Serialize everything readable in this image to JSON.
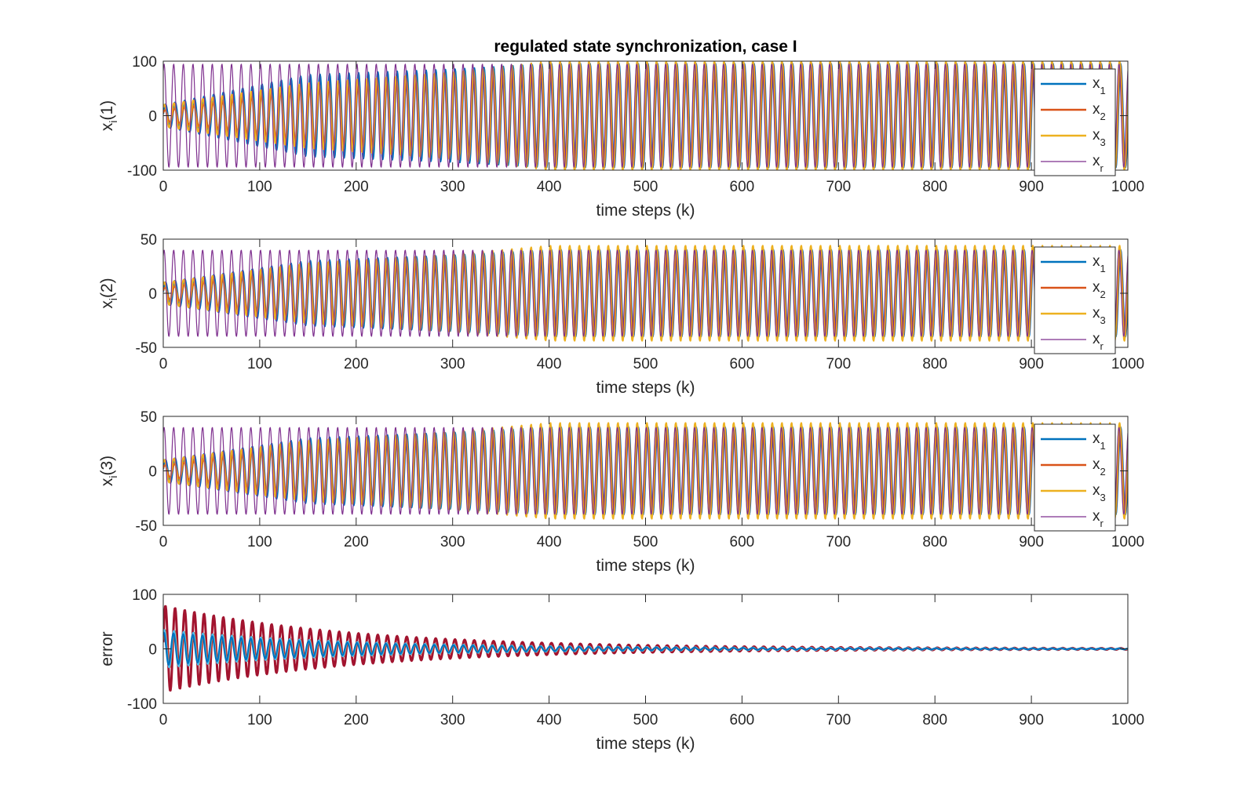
{
  "chart_data": [
    {
      "type": "line",
      "title": "regulated state synchronization, case I",
      "xlabel": "time steps (k)",
      "ylabel": "x_i(1)",
      "xlim": [
        0,
        1000
      ],
      "ylim": [
        -100,
        100
      ],
      "xticks": [
        "0",
        "100",
        "200",
        "300",
        "400",
        "500",
        "600",
        "700",
        "800",
        "900",
        "1000"
      ],
      "yticks": [
        "-100",
        "0",
        "100"
      ],
      "legend": [
        "x_1",
        "x_2",
        "x_3",
        "x_r"
      ],
      "legend_position": "right",
      "series": [
        {
          "name": "x_1",
          "color": "#0072BD",
          "amplitude_start": 20,
          "amplitude_peak": 75,
          "amplitude_end": 95,
          "period": 10
        },
        {
          "name": "x_2",
          "color": "#D95319",
          "amplitude_start": 10,
          "amplitude_peak": 50,
          "amplitude_end": 95,
          "period": 10
        },
        {
          "name": "x_3",
          "color": "#EDB120",
          "amplitude_start": 20,
          "amplitude_peak": 60,
          "amplitude_end": 100,
          "period": 10
        },
        {
          "name": "x_r",
          "color": "#7E2F8E",
          "amplitude": 95,
          "period": 10
        }
      ]
    },
    {
      "type": "line",
      "title": "",
      "xlabel": "time steps (k)",
      "ylabel": "x_i(2)",
      "xlim": [
        0,
        1000
      ],
      "ylim": [
        -50,
        50
      ],
      "xticks": [
        "0",
        "100",
        "200",
        "300",
        "400",
        "500",
        "600",
        "700",
        "800",
        "900",
        "1000"
      ],
      "yticks": [
        "-50",
        "0",
        "50"
      ],
      "legend": [
        "x_1",
        "x_2",
        "x_3",
        "x_r"
      ],
      "legend_position": "right",
      "series": [
        {
          "name": "x_1",
          "color": "#0072BD",
          "amplitude_start": 10,
          "amplitude_peak": 30,
          "amplitude_end": 40,
          "period": 10
        },
        {
          "name": "x_2",
          "color": "#D95319",
          "amplitude_start": 5,
          "amplitude_peak": 25,
          "amplitude_end": 40,
          "period": 10
        },
        {
          "name": "x_3",
          "color": "#EDB120",
          "amplitude_start": 10,
          "amplitude_peak": 28,
          "amplitude_end": 44,
          "period": 10
        },
        {
          "name": "x_r",
          "color": "#7E2F8E",
          "amplitude": 40,
          "period": 10
        }
      ]
    },
    {
      "type": "line",
      "title": "",
      "xlabel": "time steps (k)",
      "ylabel": "x_i(3)",
      "xlim": [
        0,
        1000
      ],
      "ylim": [
        -50,
        50
      ],
      "xticks": [
        "0",
        "100",
        "200",
        "300",
        "400",
        "500",
        "600",
        "700",
        "800",
        "900",
        "1000"
      ],
      "yticks": [
        "-50",
        "0",
        "50"
      ],
      "legend": [
        "x_1",
        "x_2",
        "x_3",
        "x_r"
      ],
      "legend_position": "right",
      "series": [
        {
          "name": "x_1",
          "color": "#0072BD",
          "amplitude_start": 10,
          "amplitude_peak": 30,
          "amplitude_end": 40,
          "period": 10
        },
        {
          "name": "x_2",
          "color": "#D95319",
          "amplitude_start": 5,
          "amplitude_peak": 25,
          "amplitude_end": 40,
          "period": 10
        },
        {
          "name": "x_3",
          "color": "#EDB120",
          "amplitude_start": 10,
          "amplitude_peak": 28,
          "amplitude_end": 44,
          "period": 10
        },
        {
          "name": "x_r",
          "color": "#7E2F8E",
          "amplitude": 40,
          "period": 10
        }
      ]
    },
    {
      "type": "line",
      "title": "",
      "xlabel": "time steps (k)",
      "ylabel": "error",
      "xlim": [
        0,
        1000
      ],
      "ylim": [
        -100,
        100
      ],
      "xticks": [
        "0",
        "100",
        "200",
        "300",
        "400",
        "500",
        "600",
        "700",
        "800",
        "900",
        "1000"
      ],
      "yticks": [
        "-100",
        "0",
        "100"
      ],
      "series": [
        {
          "color": "#A2142F",
          "amplitude_start": 80,
          "amplitude_end": 1,
          "period": 10
        },
        {
          "color": "#D95319",
          "amplitude_start": 35,
          "amplitude_end": 1,
          "period": 10
        },
        {
          "color": "#4DBEEE",
          "amplitude_start": 35,
          "amplitude_end": 1,
          "period": 10
        },
        {
          "color": "#0072BD",
          "amplitude_start": 30,
          "amplitude_end": 0.5,
          "period": 10
        }
      ]
    }
  ]
}
